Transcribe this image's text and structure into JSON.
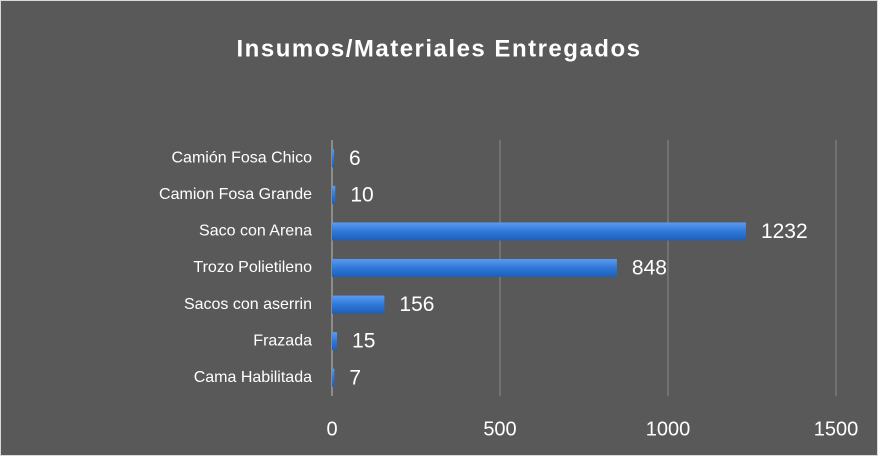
{
  "chart_data": {
    "type": "bar",
    "orientation": "horizontal",
    "title": "Insumos/Materiales Entregados",
    "categories": [
      "Camión Fosa Chico",
      "Camion Fosa Grande",
      "Saco con Arena",
      "Trozo Polietileno",
      "Sacos con aserrin",
      "Frazada",
      "Cama Habilitada"
    ],
    "values": [
      6,
      10,
      1232,
      848,
      156,
      15,
      7
    ],
    "color": "#2f78d8",
    "xlim": [
      0,
      1500
    ],
    "xticks": [
      0,
      500,
      1000,
      1500
    ],
    "grid": true
  }
}
